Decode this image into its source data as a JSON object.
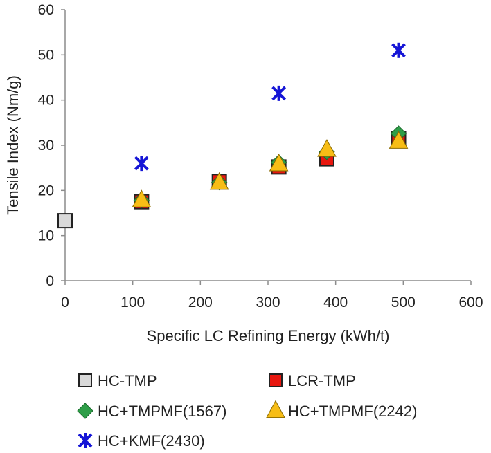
{
  "chart_data": {
    "type": "scatter",
    "xlabel": "Specific LC Refining Energy (kWh/t)",
    "ylabel": "Tensile Index (Nm/g)",
    "xlim": [
      0,
      600
    ],
    "ylim": [
      0,
      60
    ],
    "xticks": [
      "0",
      "100",
      "200",
      "300",
      "400",
      "500",
      "600"
    ],
    "yticks": [
      "0",
      "10",
      "20",
      "30",
      "40",
      "50",
      "60"
    ],
    "grid": false,
    "legend_position": "bottom",
    "series": [
      {
        "name": "HC-TMP",
        "marker": "square",
        "color": "#d9d9d9",
        "points": [
          [
            0,
            13.3
          ]
        ]
      },
      {
        "name": "LCR-TMP",
        "marker": "square",
        "color": "#e8170f",
        "points": [
          [
            113,
            17.5
          ],
          [
            228,
            22.0
          ],
          [
            316,
            25.2
          ],
          [
            387,
            27.0
          ],
          [
            493,
            31.5
          ]
        ]
      },
      {
        "name": "HC+TMPMF(1567)",
        "marker": "diamond",
        "color": "#2e9e48",
        "points": [
          [
            113,
            17.8
          ],
          [
            228,
            21.8
          ],
          [
            316,
            26.2
          ],
          [
            387,
            28.5
          ],
          [
            493,
            32.6
          ]
        ]
      },
      {
        "name": "HC+TMPMF(2242)",
        "marker": "triangle",
        "color": "#f7bd16",
        "points": [
          [
            113,
            17.8
          ],
          [
            228,
            21.7
          ],
          [
            316,
            25.8
          ],
          [
            387,
            29.0
          ],
          [
            493,
            30.8
          ]
        ]
      },
      {
        "name": "HC+KMF(2430)",
        "marker": "star",
        "color": "#1515d6",
        "points": [
          [
            113,
            26.0
          ],
          [
            316,
            41.5
          ],
          [
            493,
            51.0
          ]
        ]
      }
    ]
  }
}
